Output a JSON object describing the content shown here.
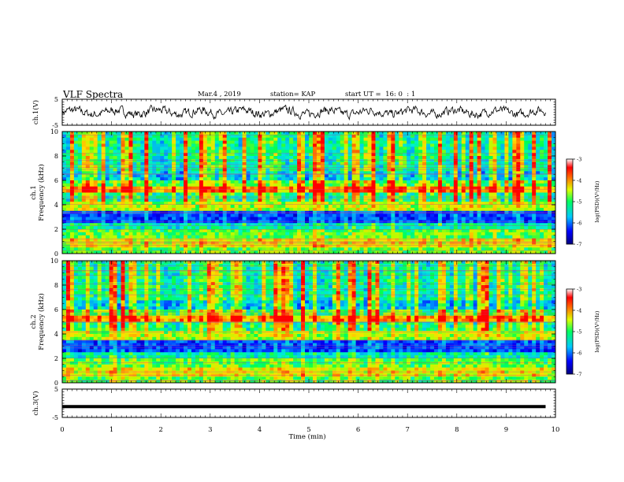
{
  "header": {
    "title": "VLF Spectra",
    "date": "Mar.4 , 2019",
    "station": "station= KAP",
    "start": "start UT =  16: 0  : 1"
  },
  "chart_data": [
    {
      "type": "line",
      "panel": "ch1-waveform",
      "ylabel": "ch.1(V)",
      "ylim": [
        -5,
        5
      ],
      "y_ticks": [
        "5",
        "-5"
      ],
      "xlim": [
        0,
        10
      ],
      "note": "noisy waveform, oscillating roughly between -3 and 3 V"
    },
    {
      "type": "heatmap",
      "panel": "ch1-spectrogram",
      "ylabel": "ch.1\nFrequency (kHz)",
      "ylim": [
        0,
        10
      ],
      "y_ticks": [
        "0",
        "2",
        "4",
        "6",
        "8",
        "10"
      ],
      "xlim": [
        0,
        10
      ],
      "colorbar": {
        "label": "log(PSD)(V²/Hz)",
        "range": [
          -7,
          -3
        ],
        "ticks": [
          "-3",
          "-4",
          "-5",
          "-6",
          "-7"
        ]
      }
    },
    {
      "type": "heatmap",
      "panel": "ch2-spectrogram",
      "ylabel": "ch.2\nFrequency (kHz)",
      "ylim": [
        0,
        10
      ],
      "y_ticks": [
        "0",
        "2",
        "4",
        "6",
        "8",
        "10"
      ],
      "xlim": [
        0,
        10
      ],
      "colorbar": {
        "label": "log(PSD)(V²/Hz)",
        "range": [
          -7,
          -3
        ],
        "ticks": [
          "-3",
          "-4",
          "-5",
          "-6",
          "-7"
        ]
      }
    },
    {
      "type": "line",
      "panel": "ch3-waveform",
      "ylabel": "ch.3(V)",
      "ylim": [
        -5,
        5
      ],
      "y_ticks": [
        "5",
        "-5"
      ],
      "series": [
        {
          "x": [
            0,
            9.8
          ],
          "y": [
            -1.2,
            -1.2
          ]
        }
      ],
      "xlim": [
        0,
        10
      ],
      "xlabel": "Time (min)",
      "x_ticks": [
        "0",
        "1",
        "2",
        "3",
        "4",
        "5",
        "6",
        "7",
        "8",
        "9",
        "10"
      ]
    }
  ]
}
